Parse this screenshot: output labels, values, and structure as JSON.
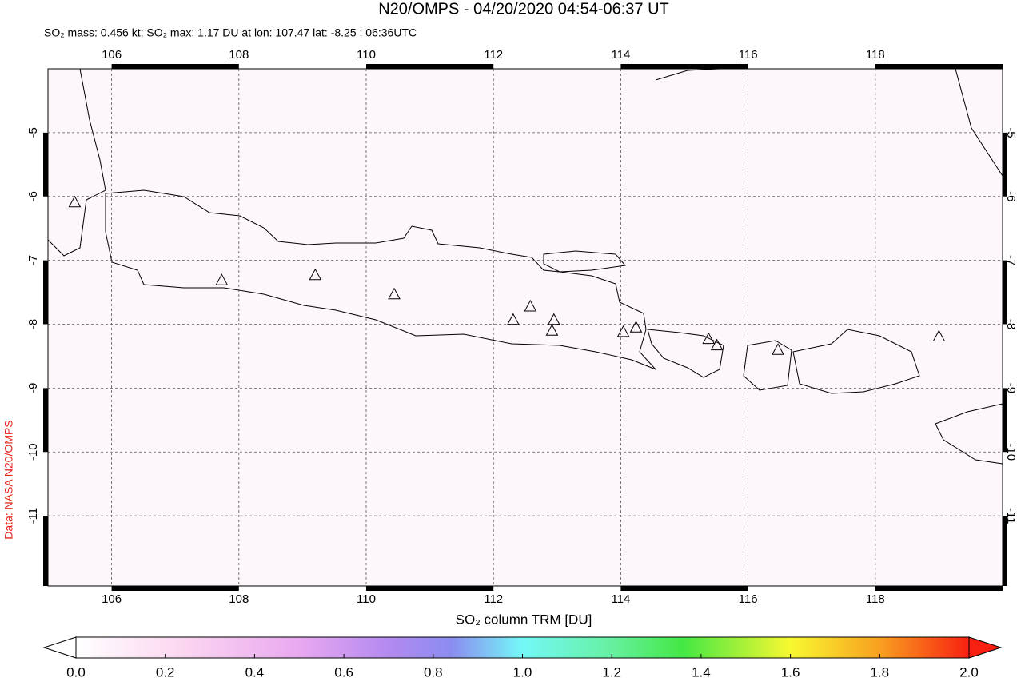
{
  "chart_data": {
    "type": "map",
    "title": "N20/OMPS - 04/20/2020 04:54-06:37 UT",
    "subtitle": "SO₂ mass: 0.456 kt; SO₂ max: 1.17 DU at lon: 107.47 lat: -8.25 ; 06:36UTC",
    "credit": "Data: NASA N20/OMPS",
    "xlim": [
      105,
      120
    ],
    "ylim": [
      -12.1,
      -4
    ],
    "xticks": [
      106,
      108,
      110,
      112,
      114,
      116,
      118
    ],
    "yticks": [
      -5,
      -6,
      -7,
      -8,
      -9,
      -10,
      -11
    ],
    "grid": true,
    "volcanoes": {
      "lon": [
        105.42,
        107.73,
        109.2,
        110.44,
        112.31,
        112.58,
        112.92,
        112.95,
        114.04,
        114.24,
        115.38,
        115.51,
        116.47,
        119.0
      ],
      "lat": [
        -6.1,
        -7.32,
        -7.24,
        -7.54,
        -7.94,
        -7.73,
        -8.11,
        -7.94,
        -8.13,
        -8.06,
        -8.24,
        -8.34,
        -8.41,
        -8.2
      ]
    },
    "colorbar": {
      "label": "SO₂ column TRM [DU]",
      "lim": [
        0,
        2
      ],
      "ticks": [
        {
          "value": 0,
          "label": "0.0"
        },
        {
          "value": 0.2,
          "label": "0.2"
        },
        {
          "value": 0.4,
          "label": "0.4"
        },
        {
          "value": 0.6,
          "label": "0.6"
        },
        {
          "value": 0.8,
          "label": "0.8"
        },
        {
          "value": 1,
          "label": "1.0"
        },
        {
          "value": 1.2,
          "label": "1.2"
        },
        {
          "value": 1.4,
          "label": "1.4"
        },
        {
          "value": 1.6,
          "label": "1.6"
        },
        {
          "value": 1.8,
          "label": "1.8"
        },
        {
          "value": 2,
          "label": "2.0"
        }
      ]
    }
  }
}
